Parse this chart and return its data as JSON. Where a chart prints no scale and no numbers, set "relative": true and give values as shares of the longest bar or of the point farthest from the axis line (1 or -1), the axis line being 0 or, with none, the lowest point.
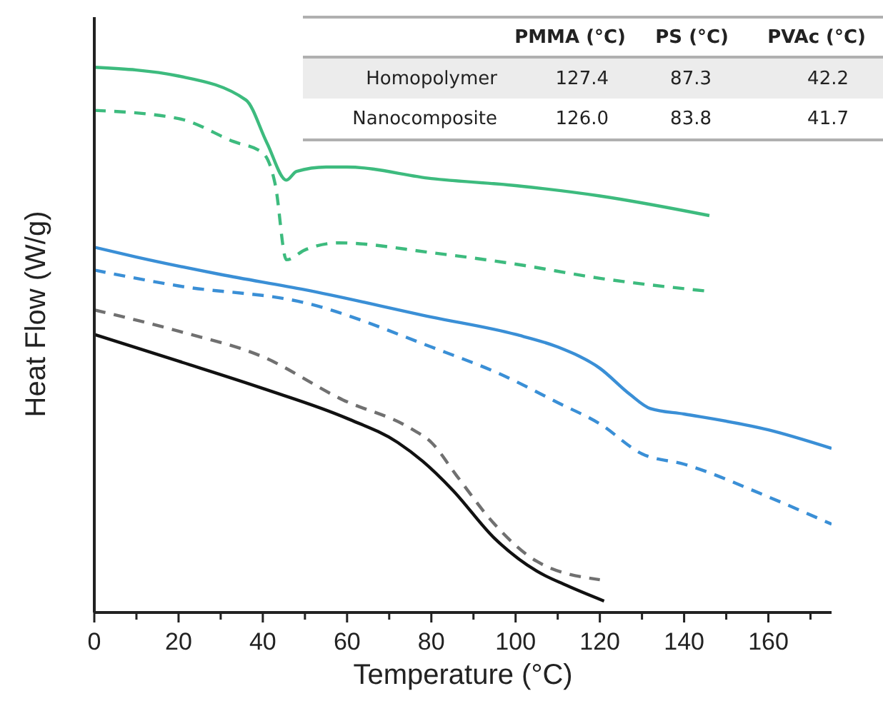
{
  "chart_data": {
    "type": "line",
    "relative": true,
    "xlabel": "Temperature (°C)",
    "ylabel": "Heat Flow (W/g)",
    "xlim": [
      0,
      175
    ],
    "xticks": [
      0,
      {
        "value": 10,
        "label": null
      },
      20,
      {
        "value": 30,
        "label": null
      },
      40,
      {
        "value": 50,
        "label": null
      },
      60,
      {
        "value": 70,
        "label": null
      },
      80,
      {
        "value": 90,
        "label": null
      },
      100,
      {
        "value": 110,
        "label": null
      },
      120,
      {
        "value": 130,
        "label": null
      },
      140,
      {
        "value": 150,
        "label": null
      },
      160,
      {
        "value": 170,
        "label": null
      }
    ],
    "grid": false,
    "marker": "none",
    "series": [
      {
        "color": "#3dbb7e",
        "line_style": "solid",
        "x": [
          0,
          20,
          36,
          41,
          45.6,
          48,
          55,
          60,
          80,
          100,
          120,
          146
        ],
        "values": [
          1.0,
          0.984,
          0.94,
          0.861,
          0.793,
          0.809,
          0.817,
          0.817,
          0.796,
          0.783,
          0.764,
          0.728
        ]
      },
      {
        "color": "#3dbb7e",
        "line_style": "dashed",
        "x": [
          0,
          20,
          33,
          40,
          43,
          45.6,
          50,
          58,
          80,
          100,
          120,
          146
        ],
        "values": [
          0.921,
          0.906,
          0.864,
          0.843,
          0.783,
          0.647,
          0.665,
          0.678,
          0.66,
          0.639,
          0.613,
          0.589
        ]
      },
      {
        "color": "#3a8fd6",
        "line_style": "solid",
        "x": [
          0,
          10,
          30,
          50,
          80,
          100,
          110,
          120,
          127,
          132,
          140,
          160,
          175
        ],
        "values": [
          0.67,
          0.652,
          0.62,
          0.592,
          0.542,
          0.51,
          0.487,
          0.448,
          0.401,
          0.374,
          0.364,
          0.335,
          0.301
        ]
      },
      {
        "color": "#3a8fd6",
        "line_style": "dashed",
        "x": [
          0,
          20,
          50,
          80,
          97,
          110,
          120,
          130,
          140,
          160,
          175
        ],
        "values": [
          0.628,
          0.599,
          0.568,
          0.487,
          0.435,
          0.385,
          0.346,
          0.291,
          0.272,
          0.212,
          0.162
        ]
      },
      {
        "color": "#707070",
        "line_style": "dashed",
        "x": [
          0,
          20,
          40,
          59,
          75,
          80,
          86,
          95,
          105,
          120
        ],
        "values": [
          0.555,
          0.516,
          0.469,
          0.39,
          0.338,
          0.312,
          0.251,
          0.162,
          0.094,
          0.06
        ]
      },
      {
        "color": "#111111",
        "line_style": "solid",
        "x": [
          0,
          20,
          40,
          60,
          72,
          78,
          85,
          95,
          105,
          112,
          121
        ],
        "values": [
          0.51,
          0.461,
          0.411,
          0.356,
          0.312,
          0.277,
          0.225,
          0.136,
          0.076,
          0.05,
          0.021
        ]
      }
    ],
    "annotations": [
      "PMMA (°C)",
      "PS (°C)",
      "PVAc (°C)",
      "Homopolymer",
      "127.4",
      "87.3",
      "42.2",
      "Nanocomposite",
      "126.0",
      "83.8",
      "41.7"
    ]
  }
}
